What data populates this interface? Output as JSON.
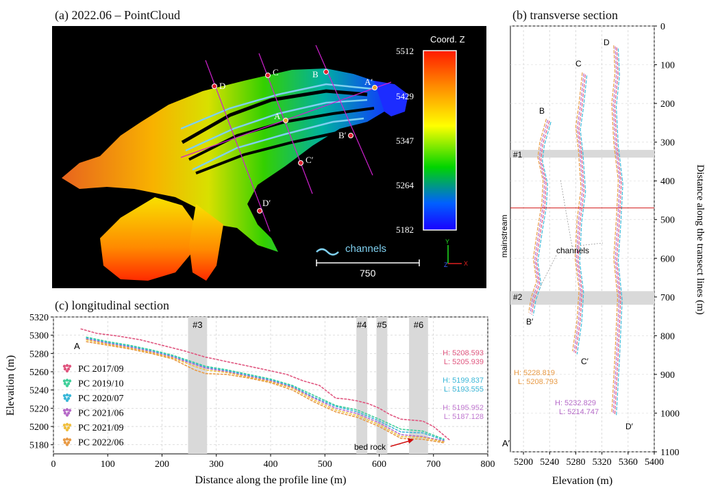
{
  "panel_a": {
    "title": "(a) 2022.06 – PointCloud",
    "colorbar_title": "Coord. Z",
    "colorbar_ticks": [
      "5512",
      "5429",
      "5347",
      "5264",
      "5182"
    ],
    "colorbar_colors": [
      "#ff1a00",
      "#ff8c00",
      "#ffff00",
      "#00d400",
      "#0060ff",
      "#1a00ff"
    ],
    "legend_label": "channels",
    "scale_label": "750",
    "axis_labels": {
      "y": "Y",
      "z": "Z",
      "x": "X"
    },
    "points": [
      "D",
      "C",
      "B",
      "A′",
      "A",
      "B′",
      "C′",
      "D′"
    ]
  },
  "panel_b": {
    "title": "(b) transverse section",
    "y_axis_label": "Distance along the transect lines (m)",
    "x_axis_label": "Elevation (m)",
    "mainstream_label": "mainstream",
    "channels_label": "channels",
    "bands": [
      "#1",
      "#2"
    ],
    "section_labels": [
      "D",
      "C",
      "B",
      "B′",
      "C′",
      "D′"
    ],
    "annot_orange": {
      "h": "H: 5228.819",
      "l": "L: 5208.793"
    },
    "annot_purple": {
      "h": "H: 5232.829",
      "l": "L: 5214.747"
    },
    "colors": {
      "orange": "#e89a45",
      "purple": "#b66ac8",
      "pink": "#e0567f",
      "cyan": "#3ab7d8",
      "red": "#d01010"
    }
  },
  "panel_c": {
    "title": "(c) longitudinal section",
    "y_axis_label": "Elevation (m)",
    "x_axis_label": "Distance along the profile line (m)",
    "start_label": "A",
    "end_label": "A′",
    "bedrock_label": "bed rock",
    "bands": [
      "#3",
      "#4",
      "#5",
      "#6"
    ],
    "annotations": [
      {
        "h": "H: 5208.593",
        "l": "L: 5205.939",
        "color": "#e0567f"
      },
      {
        "h": "H: 5199.837",
        "l": "L: 5193.555",
        "color": "#3ab7d8"
      },
      {
        "h": "H: 5195.952",
        "l": "L: 5187.128",
        "color": "#c078d0"
      }
    ],
    "legend": [
      {
        "label": "PC 2017/09",
        "color": "#e0567f"
      },
      {
        "label": "PC 2019/10",
        "color": "#3fcf9a"
      },
      {
        "label": "PC 2020/07",
        "color": "#3ab7d8"
      },
      {
        "label": "PC 2021/06",
        "color": "#b66ac8"
      },
      {
        "label": "PC 2021/09",
        "color": "#f0c040"
      },
      {
        "label": "PC 2022/06",
        "color": "#e89a45"
      }
    ]
  },
  "chart_data": [
    {
      "type": "line",
      "title": "(c) longitudinal section",
      "xlabel": "Distance along the profile line (m)",
      "ylabel": "Elevation (m)",
      "xlim": [
        0,
        800
      ],
      "ylim": [
        5170,
        5320
      ],
      "x_ticks": [
        0,
        100,
        200,
        300,
        400,
        500,
        600,
        700,
        800
      ],
      "y_ticks": [
        5180,
        5200,
        5220,
        5240,
        5260,
        5280,
        5300,
        5320
      ],
      "grid": true,
      "legend_position": "left",
      "highlight_bands": [
        {
          "label": "#3",
          "x": [
            248,
            283
          ]
        },
        {
          "label": "#4",
          "x": [
            558,
            578
          ]
        },
        {
          "label": "#5",
          "x": [
            595,
            615
          ]
        },
        {
          "label": "#6",
          "x": [
            655,
            690
          ]
        }
      ],
      "series": [
        {
          "name": "PC 2017/09",
          "x": [
            50,
            80,
            120,
            160,
            200,
            240,
            280,
            320,
            360,
            400,
            430,
            460,
            490,
            520,
            540,
            560,
            580,
            600,
            620,
            640,
            660,
            680,
            700,
            720,
            730
          ],
          "y": [
            5307,
            5302,
            5299,
            5295,
            5289,
            5283,
            5276,
            5271,
            5266,
            5261,
            5257,
            5250,
            5245,
            5231,
            5230,
            5228,
            5225,
            5220,
            5213,
            5208,
            5207,
            5206,
            5200,
            5190,
            5185
          ]
        },
        {
          "name": "PC 2019/10",
          "x": [
            60,
            100,
            140,
            180,
            220,
            260,
            280,
            320,
            360,
            400,
            440,
            480,
            520,
            560,
            600,
            640,
            680,
            720
          ],
          "y": [
            5298,
            5293,
            5289,
            5284,
            5278,
            5270,
            5266,
            5262,
            5257,
            5252,
            5245,
            5234,
            5223,
            5218,
            5208,
            5197,
            5195,
            5186
          ]
        },
        {
          "name": "PC 2020/07",
          "x": [
            60,
            100,
            140,
            180,
            220,
            260,
            280,
            320,
            360,
            400,
            440,
            480,
            520,
            560,
            600,
            640,
            680,
            720
          ],
          "y": [
            5297,
            5292,
            5288,
            5283,
            5277,
            5269,
            5265,
            5261,
            5256,
            5251,
            5244,
            5232,
            5222,
            5216,
            5206,
            5194,
            5193,
            5185
          ]
        },
        {
          "name": "PC 2021/06",
          "x": [
            60,
            100,
            140,
            180,
            220,
            260,
            280,
            320,
            360,
            400,
            440,
            480,
            520,
            560,
            600,
            640,
            680,
            720
          ],
          "y": [
            5296,
            5291,
            5287,
            5282,
            5276,
            5268,
            5264,
            5260,
            5255,
            5250,
            5243,
            5231,
            5220,
            5214,
            5204,
            5191,
            5189,
            5184
          ]
        },
        {
          "name": "PC 2021/09",
          "x": [
            60,
            100,
            140,
            180,
            220,
            260,
            280,
            320,
            360,
            400,
            440,
            480,
            520,
            560,
            600,
            640,
            680,
            720
          ],
          "y": [
            5295,
            5290,
            5286,
            5281,
            5275,
            5266,
            5262,
            5259,
            5254,
            5249,
            5242,
            5229,
            5218,
            5212,
            5202,
            5189,
            5188,
            5183
          ]
        },
        {
          "name": "PC 2022/06",
          "x": [
            60,
            100,
            140,
            180,
            220,
            260,
            280,
            320,
            360,
            400,
            440,
            480,
            520,
            560,
            600,
            640,
            680,
            720
          ],
          "y": [
            5293,
            5289,
            5285,
            5280,
            5274,
            5262,
            5258,
            5257,
            5253,
            5248,
            5240,
            5227,
            5216,
            5210,
            5200,
            5187,
            5186,
            5182
          ]
        }
      ]
    },
    {
      "type": "line",
      "title": "(b) transverse section",
      "xlabel": "Elevation (m)",
      "ylabel": "Distance along the transect lines (m)",
      "xlim": [
        5180,
        5400
      ],
      "ylim": [
        1100,
        0
      ],
      "x_ticks": [
        5200,
        5240,
        5280,
        5320,
        5360,
        5400
      ],
      "y_ticks": [
        0,
        100,
        200,
        300,
        400,
        500,
        600,
        700,
        800,
        900,
        1000,
        1100
      ],
      "grid": true,
      "mainstream_distance": 470,
      "highlight_bands": [
        {
          "label": "#1",
          "y": [
            320,
            340
          ]
        },
        {
          "label": "#2",
          "y": [
            685,
            720
          ]
        }
      ],
      "series": [
        {
          "name": "B-B′",
          "elevation": [
            5235,
            5225,
            5222,
            5230,
            5228,
            5222,
            5215,
            5220,
            5212,
            5208
          ],
          "distance": [
            240,
            300,
            340,
            400,
            460,
            520,
            600,
            660,
            700,
            740
          ]
        },
        {
          "name": "C-C′",
          "elevation": [
            5290,
            5285,
            5280,
            5284,
            5288,
            5282,
            5279,
            5285,
            5282,
            5275
          ],
          "distance": [
            120,
            200,
            260,
            320,
            420,
            500,
            600,
            680,
            760,
            840
          ]
        },
        {
          "name": "D-D′",
          "elevation": [
            5338,
            5340,
            5335,
            5338,
            5345,
            5342,
            5338,
            5344,
            5340,
            5335
          ],
          "distance": [
            50,
            120,
            200,
            300,
            400,
            500,
            600,
            700,
            850,
            1000
          ]
        }
      ]
    }
  ]
}
